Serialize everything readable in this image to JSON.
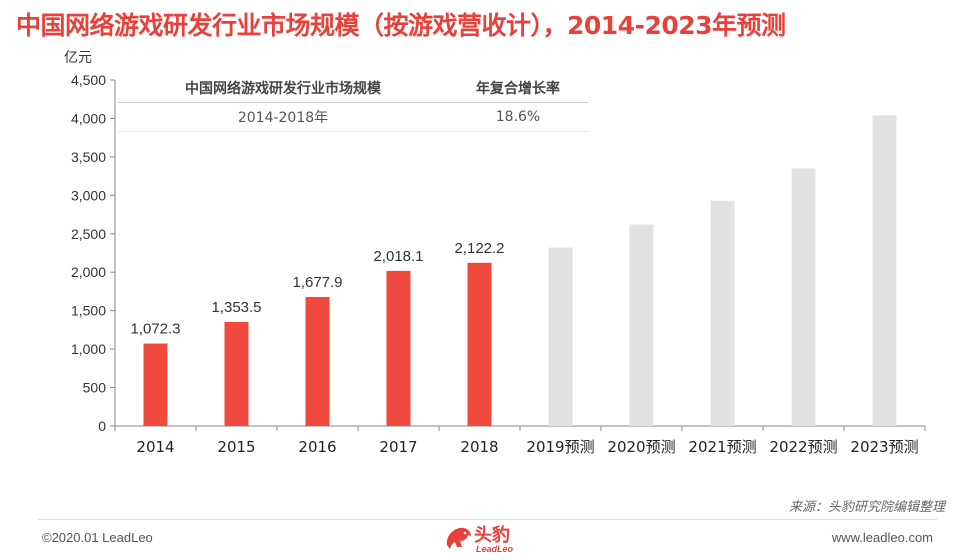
{
  "title": "中国网络游戏研发行业市场规模（按游戏营收计），2014-2023年预测",
  "unit": "亿元",
  "info_table": {
    "headers": [
      "中国网络游戏研发行业市场规模",
      "年复合增长率"
    ],
    "row": [
      "2014-2018年",
      "18.6%"
    ]
  },
  "colors": {
    "actual": "#f04a3e",
    "forecast": "#e2e2e2",
    "title": "#e8413a"
  },
  "chart_data": {
    "type": "bar",
    "categories": [
      "2014",
      "2015",
      "2016",
      "2017",
      "2018",
      "2019预测",
      "2020预测",
      "2021预测",
      "2022预测",
      "2023预测"
    ],
    "values": [
      1072.3,
      1353.5,
      1677.9,
      2018.1,
      2122.2,
      2320,
      2620,
      2930,
      3350,
      4040
    ],
    "data_labels": [
      "1,072.3",
      "1,353.5",
      "1,677.9",
      "2,018.1",
      "2,122.2",
      "",
      "",
      "",
      "",
      ""
    ],
    "forecast_from_index": 5,
    "ylabel": "亿元",
    "ylim": [
      0,
      4500
    ],
    "yticks": [
      0,
      500,
      1000,
      1500,
      2000,
      2500,
      3000,
      3500,
      4000,
      4500
    ],
    "ytick_labels": [
      "0",
      "500",
      "1,000",
      "1,500",
      "2,000",
      "2,500",
      "3,000",
      "3,500",
      "4,000",
      "4,500"
    ],
    "grid": false
  },
  "source": "来源：头豹研究院编辑整理",
  "footer": {
    "copyright": "©2020.01 LeadLeo",
    "website": "www.leadleo.com"
  },
  "logo": {
    "cn": "头豹",
    "en": "LeadLeo"
  }
}
